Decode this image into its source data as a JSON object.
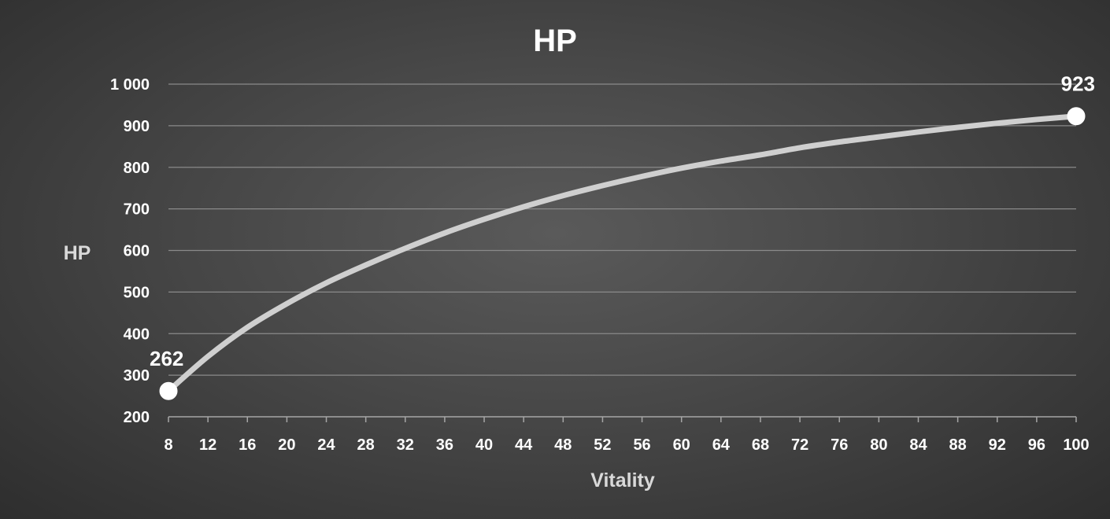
{
  "chart_data": {
    "type": "line",
    "title": "HP",
    "xlabel": "Vitality",
    "ylabel": "HP",
    "xlim": [
      8,
      100
    ],
    "ylim": [
      200,
      1000
    ],
    "x_ticks": [
      "8",
      "12",
      "16",
      "20",
      "24",
      "28",
      "32",
      "36",
      "40",
      "44",
      "48",
      "52",
      "56",
      "60",
      "64",
      "68",
      "72",
      "76",
      "80",
      "84",
      "88",
      "92",
      "96",
      "100"
    ],
    "y_ticks": [
      "200",
      "300",
      "400",
      "500",
      "600",
      "700",
      "800",
      "900",
      "1 000"
    ],
    "y_tick_values": [
      200,
      300,
      400,
      500,
      600,
      700,
      800,
      900,
      1000
    ],
    "grid": true,
    "legend": "none",
    "series": [
      {
        "color": "#cfcfcf",
        "x": [
          8,
          12,
          16,
          20,
          24,
          28,
          32,
          36,
          40,
          44,
          48,
          52,
          56,
          60,
          64,
          68,
          72,
          76,
          80,
          84,
          88,
          92,
          96,
          100
        ],
        "values": [
          262,
          345,
          415,
          472,
          522,
          565,
          605,
          642,
          675,
          705,
          732,
          756,
          778,
          798,
          815,
          830,
          847,
          861,
          873,
          885,
          896,
          906,
          915,
          923
        ]
      }
    ],
    "data_labels": [
      {
        "x": 8,
        "value": 262,
        "text": "262"
      },
      {
        "x": 100,
        "value": 923,
        "text": "923"
      }
    ]
  }
}
